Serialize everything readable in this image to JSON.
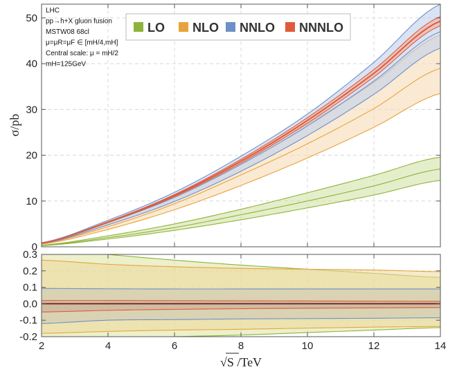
{
  "chart_data": [
    {
      "type": "area",
      "panel": "cross-section",
      "ylabel": "σ/pb",
      "xlim": [
        2,
        14
      ],
      "ylim": [
        0,
        53
      ],
      "x_ticks": [
        "2",
        "4",
        "6",
        "8",
        "10",
        "12",
        "14"
      ],
      "y_ticks": [
        "0",
        "10",
        "20",
        "30",
        "40",
        "50"
      ],
      "grid": true,
      "legend_position": "top-right",
      "annotations": [
        "LHC",
        "pp→h+X gluon fusion",
        "MSTW08 68cl",
        "μ=μR=μF ∈ [mH/4,mH]",
        "Central scale: μ = mH/2",
        "mH=125GeV"
      ],
      "x": [
        2,
        4,
        6,
        8,
        10,
        12,
        14
      ],
      "series": [
        {
          "name": "LO",
          "color": "#8db33a",
          "fill": "#d3e3a8",
          "central": [
            0.3,
            2.0,
            4.2,
            7.0,
            10.0,
            13.3,
            17.0
          ],
          "lower": [
            0.25,
            1.7,
            3.6,
            5.9,
            8.5,
            11.3,
            14.5
          ],
          "upper": [
            0.36,
            2.4,
            5.0,
            8.2,
            11.8,
            15.6,
            19.6
          ]
        },
        {
          "name": "NLO",
          "color": "#e8a33d",
          "fill": "#f7dcb5",
          "central": [
            0.7,
            4.4,
            9.4,
            15.7,
            22.5,
            30.2,
            39.0
          ],
          "lower": [
            0.6,
            3.8,
            8.1,
            13.4,
            19.4,
            26.1,
            33.5
          ],
          "upper": [
            0.85,
            5.2,
            11.2,
            18.6,
            26.8,
            35.9,
            46.3
          ]
        },
        {
          "name": "NNLO",
          "color": "#6f8fc9",
          "fill": "#c2d1eb",
          "central": [
            0.8,
            5.3,
            10.8,
            18.0,
            26.4,
            36.2,
            47.0
          ],
          "lower": [
            0.7,
            4.8,
            9.9,
            16.5,
            24.3,
            33.3,
            43.4
          ],
          "upper": [
            0.9,
            5.8,
            11.9,
            19.8,
            29.0,
            40.3,
            53.0
          ]
        },
        {
          "name": "NNNLO",
          "color": "#e05b3b",
          "fill": "#f2b19c",
          "central": [
            0.8,
            5.4,
            11.2,
            18.7,
            27.6,
            37.9,
            49.3
          ],
          "lower": [
            0.78,
            5.3,
            11.0,
            18.3,
            27.0,
            37.1,
            48.3
          ],
          "upper": [
            0.82,
            5.5,
            11.4,
            19.1,
            28.2,
            38.7,
            50.3
          ]
        }
      ]
    },
    {
      "type": "area",
      "panel": "relative uncertainty",
      "xlabel": "√S /TeV",
      "xlim": [
        2,
        14
      ],
      "ylim": [
        -0.2,
        0.3
      ],
      "x_ticks": [
        "2",
        "4",
        "6",
        "8",
        "10",
        "12",
        "14"
      ],
      "y_ticks": [
        "0.3",
        "0.2",
        "0.1",
        "0.0",
        "-0.1",
        "-0.2"
      ],
      "grid": true,
      "x": [
        2,
        4,
        6,
        8,
        10,
        12,
        14
      ],
      "series": [
        {
          "name": "LO",
          "color": "#8db33a",
          "fill": "#dde3a0",
          "lower": [
            -0.22,
            -0.21,
            -0.2,
            -0.19,
            -0.175,
            -0.16,
            -0.145
          ],
          "upper": [
            0.34,
            0.3,
            0.265,
            0.235,
            0.21,
            0.185,
            0.16
          ]
        },
        {
          "name": "NLO",
          "color": "#e8a33d",
          "fill": "#efd89a",
          "lower": [
            -0.18,
            -0.168,
            -0.16,
            -0.155,
            -0.148,
            -0.142,
            -0.138
          ],
          "upper": [
            0.265,
            0.24,
            0.225,
            0.215,
            0.21,
            0.205,
            0.195
          ]
        },
        {
          "name": "NNLO",
          "color": "#6f8fc9",
          "fill": "#c9c6b6",
          "lower": [
            -0.12,
            -0.1,
            -0.096,
            -0.092,
            -0.09,
            -0.088,
            -0.085
          ],
          "upper": [
            0.093,
            0.091,
            0.09,
            0.09,
            0.09,
            0.09,
            0.09
          ]
        },
        {
          "name": "NNNLO",
          "color": "#e05b3b",
          "fill": "#c9a796",
          "lower": [
            -0.05,
            -0.04,
            -0.034,
            -0.03,
            -0.027,
            -0.025,
            -0.023
          ],
          "upper": [
            0.02,
            0.02,
            0.019,
            0.018,
            0.017,
            0.016,
            0.015
          ]
        }
      ]
    }
  ]
}
